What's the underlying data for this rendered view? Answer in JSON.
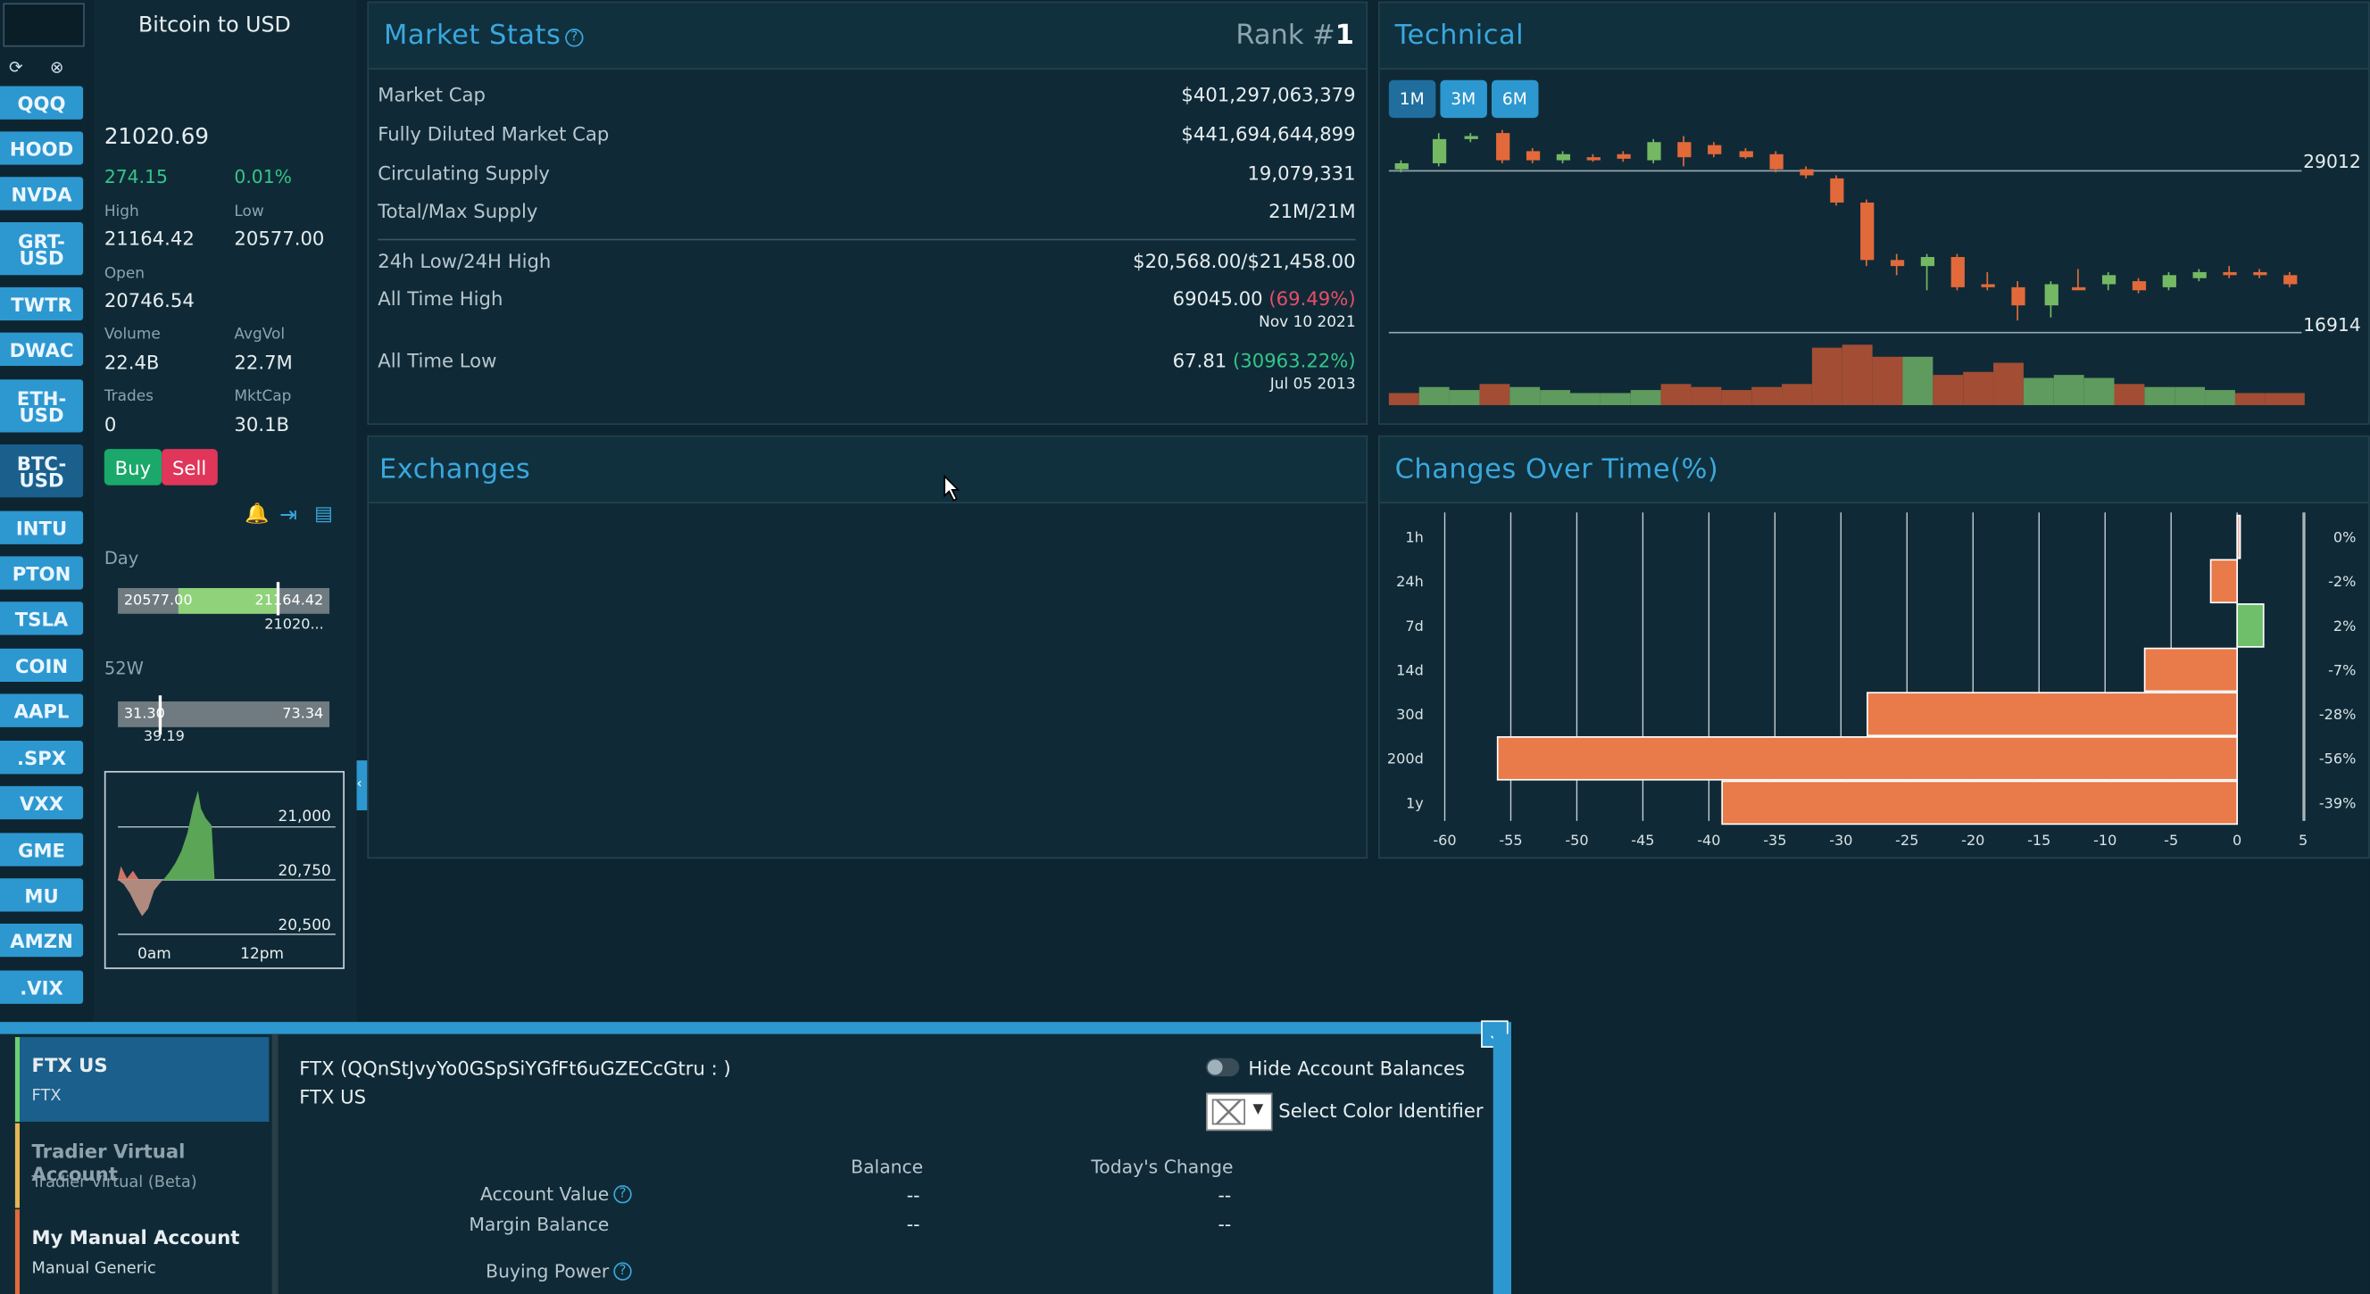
{
  "tickers": [
    "QQQ",
    "HOOD",
    "NVDA",
    "GRT-USD",
    "TWTR",
    "DWAC",
    "ETH-USD",
    "BTC-USD",
    "INTU",
    "PTON",
    "TSLA",
    "COIN",
    "AAPL",
    ".SPX",
    "VXX",
    "GME",
    "MU",
    "AMZN",
    ".VIX"
  ],
  "selected_ticker": "BTC-USD",
  "stock": {
    "title": "Bitcoin to USD",
    "price": "21020.69",
    "change": "274.15",
    "change_pct": "0.01%",
    "high_label": "High",
    "high": "21164.42",
    "low_label": "Low",
    "low": "20577.00",
    "open_label": "Open",
    "open": "20746.54",
    "volume_label": "Volume",
    "volume": "22.4B",
    "avgvol_label": "AvgVol",
    "avgvol": "22.7M",
    "trades_label": "Trades",
    "trades": "0",
    "mktcap_label": "MktCap",
    "mktcap": "30.1B",
    "buy": "Buy",
    "sell": "Sell",
    "day_label": "Day",
    "day_low": "20577.00",
    "day_high": "21164.42",
    "day_cur": "21020...",
    "day_fraction": 0.75,
    "w52_label": "52W",
    "w52_low": "31.30",
    "w52_high": "73.34",
    "w52_cur": "39.19",
    "w52_fraction": 0.19,
    "mini_ticks": [
      "21,000",
      "20,750",
      "20,500"
    ],
    "mini_x": [
      "0am",
      "12pm"
    ]
  },
  "market_stats": {
    "title": "Market Stats",
    "rank_label": "Rank #",
    "rank": "1",
    "rows": [
      {
        "k": "Market Cap",
        "v": "$401,297,063,379"
      },
      {
        "k": "Fully Diluted Market Cap",
        "v": "$441,694,644,899"
      },
      {
        "k": "Circulating Supply",
        "v": "19,079,331"
      },
      {
        "k": "Total/Max Supply",
        "v": "21M/21M"
      },
      {
        "k": "24h Low/24H High",
        "v": "$20,568.00/$21,458.00"
      }
    ],
    "ath_label": "All Time High",
    "ath": "69045.00",
    "ath_pct": "(69.49%)",
    "ath_date": "Nov 10 2021",
    "atl_label": "All Time Low",
    "atl": "67.81",
    "atl_pct": "(30963.22%)",
    "atl_date": "Jul 05 2013"
  },
  "technical": {
    "title": "Technical",
    "ranges": [
      "1M",
      "3M",
      "6M"
    ],
    "level_high": "29012",
    "level_low": "16914"
  },
  "exchanges": {
    "title": "Exchanges"
  },
  "changes": {
    "title": "Changes Over Time(%)",
    "x_ticks": [
      "-60",
      "-55",
      "-50",
      "-45",
      "-40",
      "-35",
      "-30",
      "-25",
      "-20",
      "-15",
      "-10",
      "-5",
      "0",
      "5"
    ]
  },
  "chart_data": {
    "type": "bar",
    "title": "Changes Over Time(%)",
    "categories": [
      "1h",
      "24h",
      "7d",
      "14d",
      "30d",
      "200d",
      "1y"
    ],
    "values": [
      0,
      -2,
      2,
      -7,
      -28,
      -56,
      -39
    ],
    "value_labels": [
      "0%",
      "-2%",
      "2%",
      "-7%",
      "-28%",
      "-56%",
      "-39%"
    ],
    "xlim": [
      -60,
      5
    ],
    "colors": {
      "negative": "#e97a4a",
      "positive": "#6fbf6a"
    }
  },
  "account": {
    "items": [
      {
        "name": "FTX US",
        "sub": "FTX"
      },
      {
        "name": "Tradier Virtual Account",
        "sub": "Tradier Virtual (Beta)"
      },
      {
        "name": "My Manual Account",
        "sub": "Manual Generic"
      }
    ],
    "header1": "FTX (QQnStJvyYo0GSpSiYGfFt6uGZECcGtru : )",
    "header2": "FTX US",
    "hide_balances": "Hide Account Balances",
    "color_identifier": "Select Color Identifier",
    "col_balance": "Balance",
    "col_change": "Today's Change",
    "account_value": "Account Value",
    "margin_balance": "Margin Balance",
    "buying_power": "Buying Power",
    "dash": "--"
  }
}
